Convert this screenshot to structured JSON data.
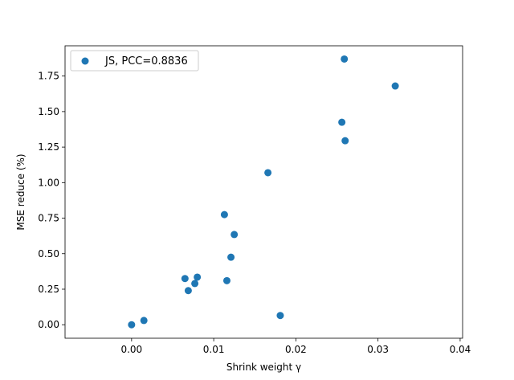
{
  "chart_data": {
    "type": "scatter",
    "title": "",
    "xlabel": "Shrink weight γ",
    "ylabel": "MSE reduce (%)",
    "xlim": [
      -0.0081,
      0.0403
    ],
    "ylim": [
      -0.095,
      1.963
    ],
    "xticks": [
      0.0,
      0.01,
      0.02,
      0.03,
      0.04
    ],
    "xtick_labels": [
      "0.00",
      "0.01",
      "0.02",
      "0.03",
      "0.04"
    ],
    "yticks": [
      0.0,
      0.25,
      0.5,
      0.75,
      1.0,
      1.25,
      1.5,
      1.75
    ],
    "ytick_labels": [
      "0.00",
      "0.25",
      "0.50",
      "0.75",
      "1.00",
      "1.25",
      "1.50",
      "1.75"
    ],
    "grid": false,
    "legend_position": "top-left",
    "color": "#1f77b4",
    "series": [
      {
        "name": "JS, PCC=0.8836",
        "points": [
          {
            "x": 0.0,
            "y": 0.0
          },
          {
            "x": 0.0015,
            "y": 0.03
          },
          {
            "x": 0.0065,
            "y": 0.325
          },
          {
            "x": 0.0069,
            "y": 0.24
          },
          {
            "x": 0.0077,
            "y": 0.29
          },
          {
            "x": 0.008,
            "y": 0.335
          },
          {
            "x": 0.0113,
            "y": 0.775
          },
          {
            "x": 0.0116,
            "y": 0.31
          },
          {
            "x": 0.0121,
            "y": 0.475
          },
          {
            "x": 0.0125,
            "y": 0.635
          },
          {
            "x": 0.0166,
            "y": 1.07
          },
          {
            "x": 0.0181,
            "y": 0.065
          },
          {
            "x": 0.0256,
            "y": 1.425
          },
          {
            "x": 0.0259,
            "y": 1.87
          },
          {
            "x": 0.026,
            "y": 1.295
          },
          {
            "x": 0.0321,
            "y": 1.68
          }
        ]
      }
    ]
  }
}
